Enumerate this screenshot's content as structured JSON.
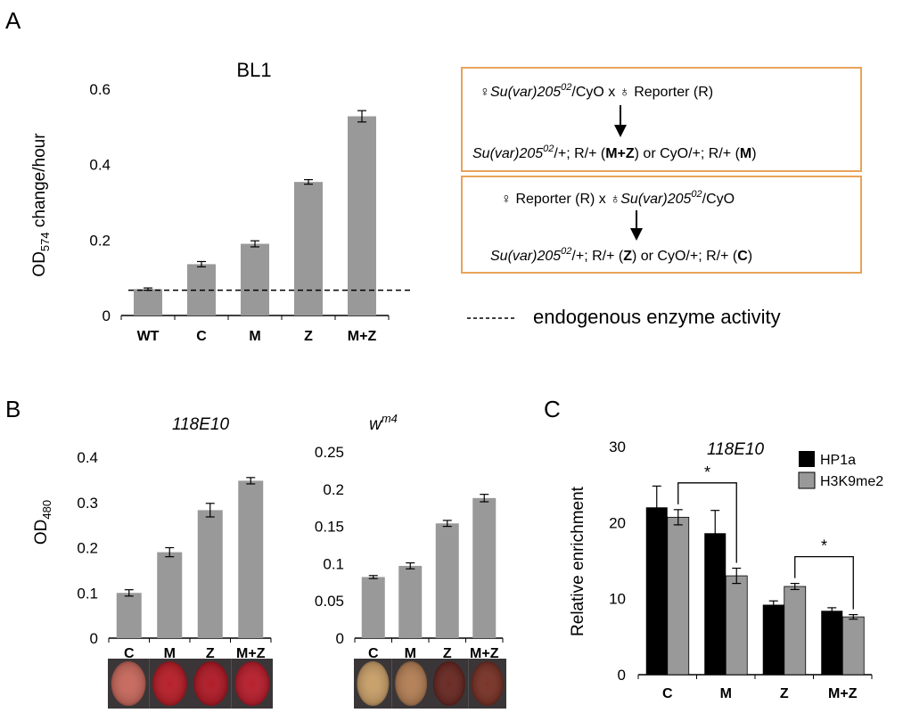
{
  "panels": {
    "a": "A",
    "b": "B",
    "c": "C"
  },
  "colors": {
    "gray_bar": "#999999",
    "black_bar": "#000000",
    "box_border": "#e8a35a"
  },
  "chart_data": [
    {
      "id": "A",
      "type": "bar",
      "title": "BL1",
      "ylabel_main": "OD",
      "ylabel_sub": "574",
      "ylabel_rest": " change/hour",
      "categories": [
        "WT",
        "C",
        "M",
        "Z",
        "M+Z"
      ],
      "values": [
        0.07,
        0.136,
        0.19,
        0.354,
        0.528
      ],
      "errors": [
        0.003,
        0.007,
        0.008,
        0.006,
        0.015
      ],
      "ylim": [
        0,
        0.6
      ],
      "yticks": [
        0,
        0.2,
        0.4,
        0.6
      ],
      "ytick_labels": [
        "0",
        "0.2",
        "0.4",
        "0.6"
      ],
      "reference_line": 0.067
    },
    {
      "id": "B1",
      "type": "bar",
      "title": "118E10",
      "ylabel_main": "OD",
      "ylabel_sub": "480",
      "categories": [
        "C",
        "M",
        "Z",
        "M+Z"
      ],
      "values": [
        0.1,
        0.19,
        0.283,
        0.348
      ],
      "errors": [
        0.007,
        0.01,
        0.015,
        0.007
      ],
      "ylim": [
        0,
        0.4
      ],
      "yticks": [
        0,
        0.1,
        0.2,
        0.3,
        0.4
      ],
      "ytick_labels": [
        "0",
        "0.1",
        "0.2",
        "0.3",
        "0.4"
      ]
    },
    {
      "id": "B2",
      "type": "bar",
      "title_base": "w",
      "title_sup": "m4",
      "categories": [
        "C",
        "M",
        "Z",
        "M+Z"
      ],
      "values": [
        0.082,
        0.097,
        0.154,
        0.188
      ],
      "errors": [
        0.002,
        0.004,
        0.004,
        0.005
      ],
      "ylim": [
        0,
        0.25
      ],
      "yticks": [
        0,
        0.05,
        0.1,
        0.15,
        0.2,
        0.25
      ],
      "ytick_labels": [
        "0",
        "0.05",
        "0.1",
        "0.15",
        "0.2",
        "0.25"
      ]
    },
    {
      "id": "C",
      "type": "bar",
      "title": "118E10",
      "ylabel": "Relative enrichment",
      "categories": [
        "C",
        "M",
        "Z",
        "M+Z"
      ],
      "series": [
        {
          "name": "HP1a",
          "values": [
            22.0,
            18.6,
            9.2,
            8.4
          ],
          "errors": [
            2.8,
            3.0,
            0.5,
            0.4
          ]
        },
        {
          "name": "H3K9me2",
          "values": [
            20.7,
            13.0,
            11.6,
            7.6
          ],
          "errors": [
            1.0,
            1.0,
            0.4,
            0.3
          ]
        }
      ],
      "ylim": [
        0,
        30
      ],
      "yticks": [
        0,
        10,
        20,
        30
      ],
      "ytick_labels": [
        "0",
        "10",
        "20",
        "30"
      ],
      "significance": [
        {
          "from": "C",
          "to": "M",
          "label": "*"
        },
        {
          "from": "Z",
          "to": "M+Z",
          "label": "*"
        }
      ]
    }
  ],
  "crosses": [
    {
      "line1": {
        "female_sym": "♀",
        "female_it": "Su(var)205",
        "female_sup": "02",
        "female_rest": "/CyO  x ",
        "male_sym": "♁",
        "male_it": "",
        "male_sup": "",
        "male_rest": " Reporter (R)"
      },
      "line2": {
        "p1_it": "Su(var)205",
        "p1_sup": "02",
        "p1_rest": "/+; R/+  (",
        "p1_bold": "M+Z",
        "p1_close": ") or  CyO/+; R/+ (",
        "p2_bold": "M",
        "p2_close": ")"
      }
    },
    {
      "line1": {
        "female_sym": "♀",
        "female_it": "",
        "female_sup": "",
        "female_rest": " Reporter (R)   x  ",
        "male_sym": "♁",
        "male_it": "Su(var)205",
        "male_sup": "02",
        "male_rest": "/CyO"
      },
      "line2": {
        "p1_it": "Su(var)205",
        "p1_sup": "02",
        "p1_rest": "/+; R/+ (",
        "p1_bold": "Z",
        "p1_close": ") or  CyO/+; R/+ (",
        "p2_bold": "C",
        "p2_close": ")"
      }
    }
  ],
  "endogenous_legend": "endogenous enzyme activity",
  "eye_photos": {
    "b1": [
      "#c96a5e",
      "#b8202a",
      "#b01c28",
      "#b8202e"
    ],
    "b2": [
      "#c9a06a",
      "#b48057",
      "#6a2a24",
      "#7a3428"
    ]
  }
}
